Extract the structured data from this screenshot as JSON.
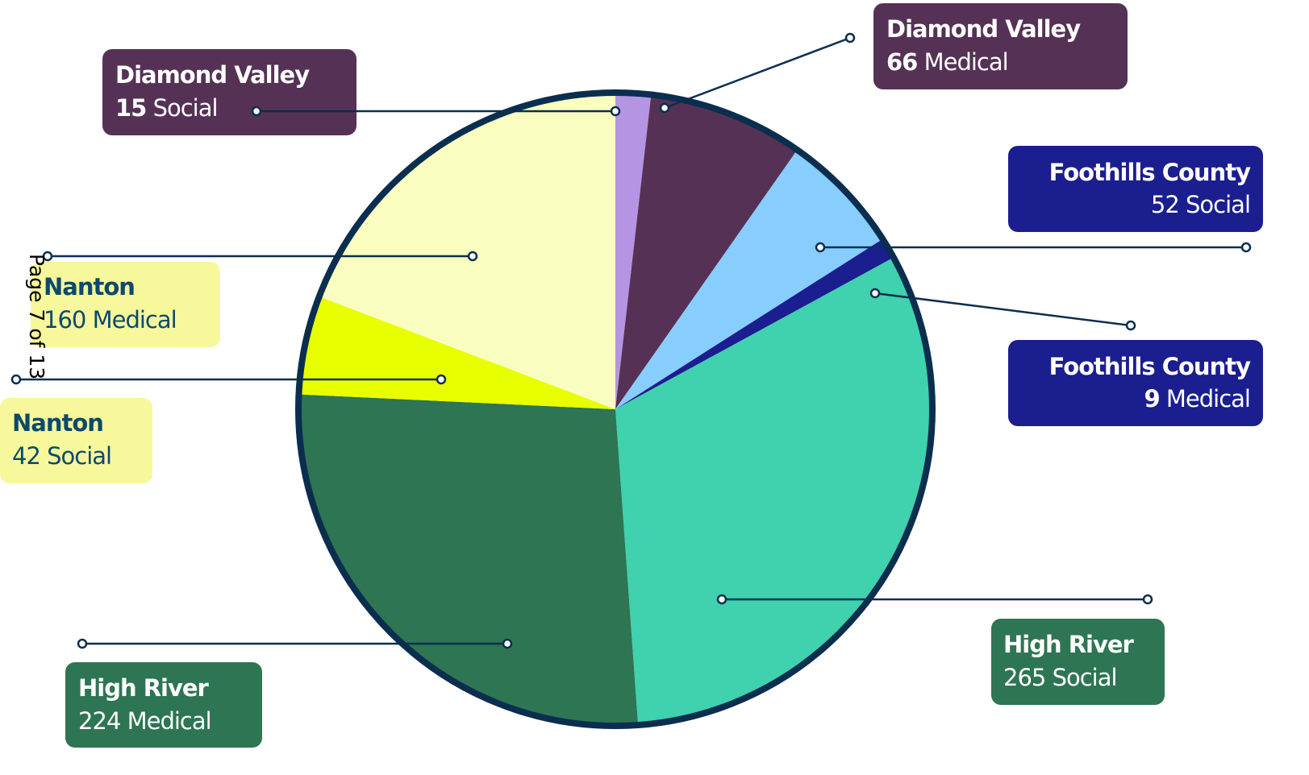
{
  "chart_data": {
    "type": "pie",
    "categories": [
      "Diamond Valley",
      "Diamond Valley",
      "Foothills County",
      "Foothills County",
      "High River",
      "High River",
      "Nanton",
      "Nanton"
    ],
    "kinds": [
      "Social",
      "Medical",
      "Social",
      "Medical",
      "Social",
      "Medical",
      "Social",
      "Medical"
    ],
    "values": [
      15,
      66,
      52,
      9,
      265,
      224,
      42,
      160
    ],
    "colors": [
      "#b595e3",
      "#553255",
      "#87cdfd",
      "#1b1e8f",
      "#40d1ae",
      "#2d7553",
      "#e8ff00",
      "#f9fec0"
    ],
    "page_label": "Page 7 of 13"
  }
}
